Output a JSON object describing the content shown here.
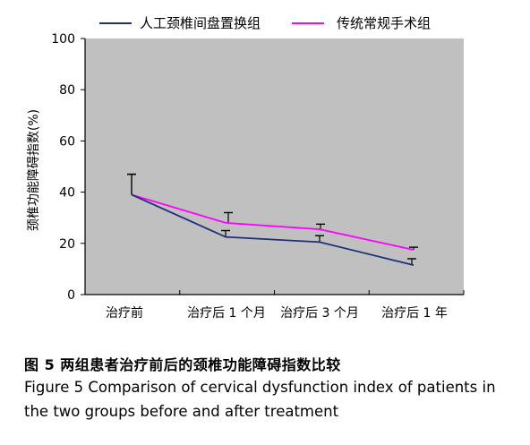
{
  "chart_data": {
    "type": "line",
    "categories": [
      "治疗前",
      "治疗后 1 个月",
      "治疗后 3 个月",
      "治疗后 1 年"
    ],
    "ylabel": "颈椎功能障碍指数(%)",
    "xlabel": "",
    "ylim": [
      0,
      100
    ],
    "yticks": [
      0,
      20,
      40,
      60,
      80,
      100
    ],
    "grid": false,
    "legend_position": "top",
    "series": [
      {
        "name": "人工颈椎间盘置换组",
        "color": "#1f2f7a",
        "values": [
          39,
          22.5,
          20.5,
          11.5
        ],
        "error_plus": [
          8,
          2.5,
          2.5,
          2.5
        ]
      },
      {
        "name": "传统常规手术组",
        "color": "#ff00ff",
        "values": [
          39,
          28,
          25.5,
          17.5
        ],
        "error_plus": [
          8,
          4,
          2,
          1
        ]
      }
    ]
  },
  "caption": {
    "cn": "图 5   两组患者治疗前后的颈椎功能障碍指数比较",
    "en_line1": "Figure 5   Comparison of cervical dysfunction index of patients in",
    "en_line2": "the two groups before and after treatment"
  }
}
